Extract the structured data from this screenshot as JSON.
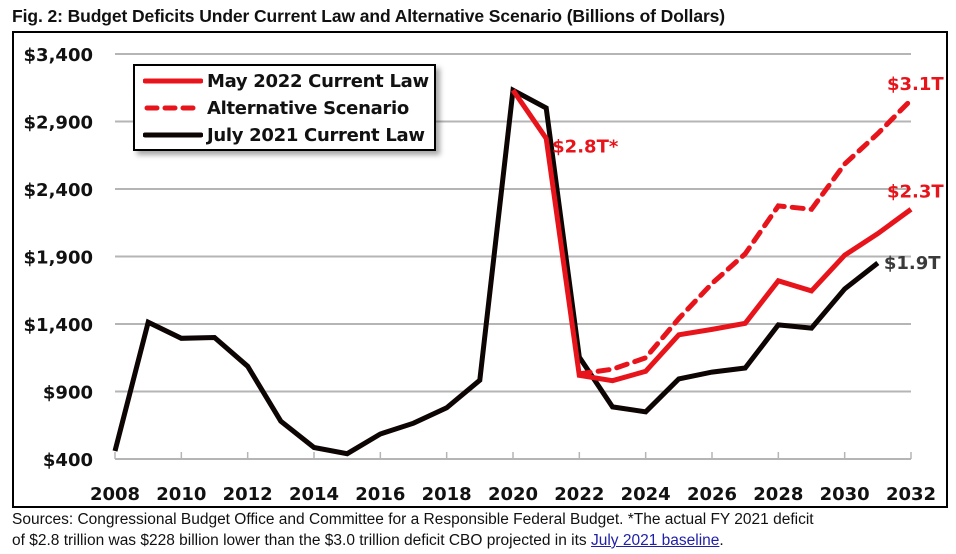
{
  "figure": {
    "title": "Fig. 2: Budget Deficits Under Current Law and Alternative Scenario (Billions of Dollars)",
    "note_line1": "Sources: Congressional Budget Office and Committee for a Responsible Federal Budget. *The actual FY 2021 deficit",
    "note_line2_prefix": "of $2.8 trillion was $228 billion lower than the $3.0 trillion deficit CBO projected in its ",
    "note_link": "July 2021 baseline",
    "note_suffix": "."
  },
  "colors": {
    "red": "#e8141b",
    "black": "#0d0404",
    "grid": "#b5b5b5",
    "label_gray": "#3a3a3a",
    "link": "#1f1fa8"
  },
  "chart_data": {
    "type": "line",
    "title": "Budget Deficits Under Current Law and Alternative Scenario (Billions of Dollars)",
    "xlabel": "",
    "ylabel": "",
    "xlim": [
      2008,
      2032
    ],
    "ylim": [
      400,
      3400
    ],
    "grid": true,
    "legend_position": "top-left",
    "x_ticks": [
      "2008",
      "2010",
      "2012",
      "2014",
      "2016",
      "2018",
      "2020",
      "2022",
      "2024",
      "2026",
      "2028",
      "2030",
      "2032"
    ],
    "y_ticks": [
      "$3,400",
      "$2,900",
      "$2,400",
      "$1,900",
      "$1,400",
      "$900",
      "$400"
    ],
    "y_tick_values": [
      3400,
      2900,
      2400,
      1900,
      1400,
      900,
      400
    ],
    "series": [
      {
        "name": "July 2021 Current Law",
        "style": "solid",
        "color": "#0d0404",
        "x": [
          2008,
          2009,
          2010,
          2011,
          2012,
          2013,
          2014,
          2015,
          2016,
          2017,
          2018,
          2019,
          2020,
          2021,
          2022,
          2023,
          2024,
          2025,
          2026,
          2027,
          2028,
          2029,
          2030,
          2031
        ],
        "values": [
          459,
          1413,
          1294,
          1300,
          1087,
          680,
          485,
          439,
          585,
          665,
          779,
          984,
          3132,
          3000,
          1155,
          786,
          750,
          993,
          1044,
          1074,
          1393,
          1370,
          1660,
          1852
        ]
      },
      {
        "name": "May 2022 Current Law",
        "style": "solid",
        "color": "#e8141b",
        "x": [
          2020,
          2021,
          2022,
          2023,
          2024,
          2025,
          2026,
          2027,
          2028,
          2029,
          2030,
          2031,
          2032
        ],
        "values": [
          3132,
          2775,
          1020,
          980,
          1050,
          1320,
          1360,
          1405,
          1720,
          1645,
          1910,
          2070,
          2250
        ]
      },
      {
        "name": "Alternative Scenario",
        "style": "dashed",
        "color": "#e8141b",
        "x": [
          2022,
          2023,
          2024,
          2025,
          2026,
          2027,
          2028,
          2029,
          2030,
          2031,
          2032
        ],
        "values": [
          1030,
          1065,
          1150,
          1440,
          1700,
          1920,
          2275,
          2250,
          2585,
          2810,
          3060
        ]
      }
    ],
    "legend": [
      {
        "label": "May 2022 Current Law",
        "style": "solid",
        "color": "#e8141b"
      },
      {
        "label": "Alternative Scenario",
        "style": "dashed",
        "color": "#e8141b"
      },
      {
        "label": "July 2021 Current Law",
        "style": "solid",
        "color": "#0d0404"
      }
    ],
    "annotations": [
      {
        "text": "$2.8T*",
        "x": 2021,
        "value": 2775,
        "color": "#e8141b"
      },
      {
        "text": "$3.1T",
        "x": 2032,
        "value": 3060,
        "color": "#e8141b"
      },
      {
        "text": "$2.3T",
        "x": 2032,
        "value": 2250,
        "color": "#e8141b"
      },
      {
        "text": "$1.9T",
        "x": 2031,
        "value": 1852,
        "color": "#3a3a3a"
      }
    ]
  }
}
